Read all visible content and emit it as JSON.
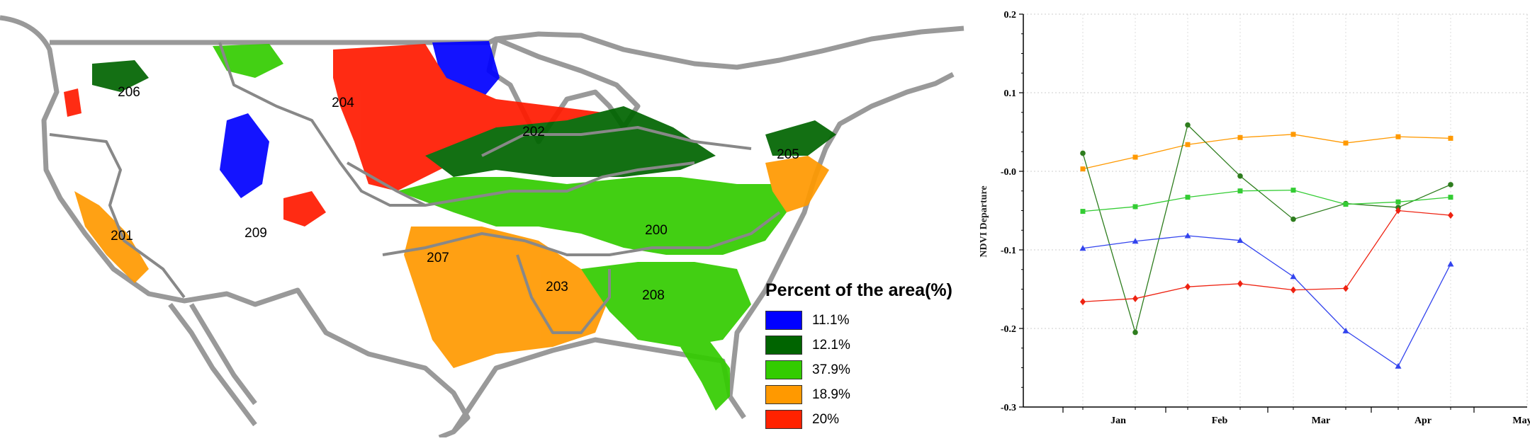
{
  "map": {
    "regions": [
      {
        "id": "200",
        "label": "200"
      },
      {
        "id": "201",
        "label": "201"
      },
      {
        "id": "202",
        "label": "202"
      },
      {
        "id": "203",
        "label": "203"
      },
      {
        "id": "204",
        "label": "204"
      },
      {
        "id": "205",
        "label": "205"
      },
      {
        "id": "206",
        "label": "206"
      },
      {
        "id": "207",
        "label": "207"
      },
      {
        "id": "208",
        "label": "208"
      },
      {
        "id": "209",
        "label": "209"
      }
    ],
    "legend": {
      "title": "Percent of the area(%)",
      "items": [
        {
          "label": "11.1%",
          "color": "#0000ff"
        },
        {
          "label": "12.1%",
          "color": "#006400"
        },
        {
          "label": "37.9%",
          "color": "#33cc00"
        },
        {
          "label": "18.9%",
          "color": "#ff9900"
        },
        {
          "label": "20%",
          "color": "#ff2200"
        }
      ]
    }
  },
  "chart_data": {
    "type": "line",
    "ylabel": "NDVI Departure",
    "ylim": [
      -0.3,
      0.2
    ],
    "yticks": [
      "0.2",
      "0.1",
      "-0.0",
      "-0.1",
      "-0.2",
      "-0.3"
    ],
    "yticks_values": [
      0.2,
      0.1,
      0.0,
      -0.1,
      -0.2,
      -0.3
    ],
    "x_labels": [
      "Jan",
      "Feb",
      "Mar",
      "Apr",
      "May"
    ],
    "grid": true,
    "series": [
      {
        "color": "#ff9900",
        "marker": "square",
        "y": [
          0.003,
          0.018,
          0.034,
          0.043,
          0.047,
          0.036,
          0.044,
          0.042
        ]
      },
      {
        "color": "#2e7d1e",
        "marker": "circle",
        "y": [
          0.023,
          -0.205,
          0.059,
          -0.006,
          -0.061,
          -0.041,
          -0.046,
          -0.017
        ]
      },
      {
        "color": "#33cc33",
        "marker": "square",
        "y": [
          -0.051,
          -0.045,
          -0.033,
          -0.025,
          -0.024,
          -0.042,
          -0.039,
          -0.033
        ]
      },
      {
        "color": "#3344ee",
        "marker": "triangle",
        "y": [
          -0.098,
          -0.089,
          -0.082,
          -0.088,
          -0.134,
          -0.203,
          -0.248,
          -0.118
        ]
      },
      {
        "color": "#ee2211",
        "marker": "diamond",
        "y": [
          -0.166,
          -0.162,
          -0.147,
          -0.143,
          -0.151,
          -0.149,
          -0.05,
          -0.056
        ]
      }
    ]
  }
}
